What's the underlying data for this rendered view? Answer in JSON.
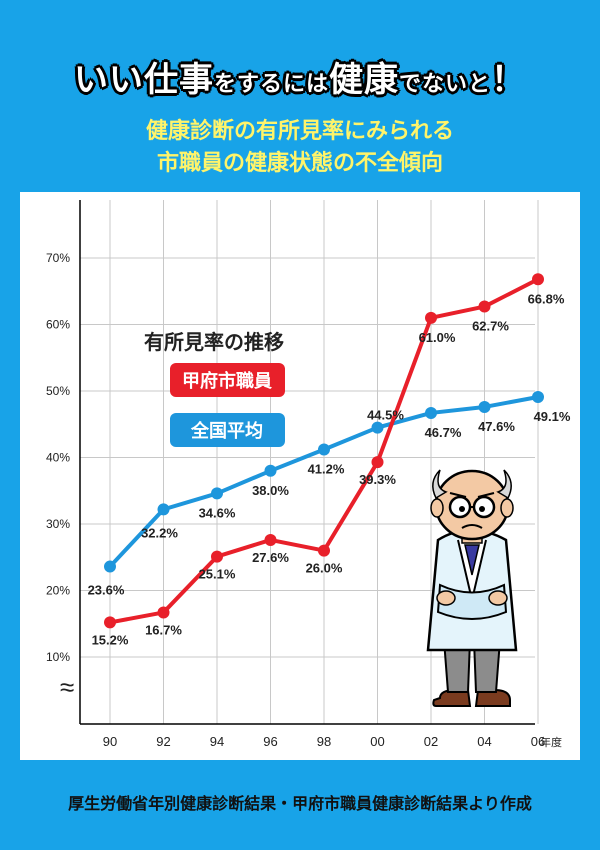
{
  "title": {
    "part1": "いい仕事",
    "part2": "をするには",
    "part3": "健康",
    "part4": "でないと",
    "part5": "！"
  },
  "subtitle": {
    "line1": "健康診断の有所見率にみられる",
    "line2": "市職員の健康状態の不全傾向"
  },
  "footer": "厚生労働省年別健康診断結果・甲府市職員健康診断結果より作成",
  "chart_data": {
    "type": "line",
    "title": "有所見率の推移",
    "categories": [
      "90",
      "92",
      "94",
      "96",
      "98",
      "00",
      "02",
      "04",
      "06"
    ],
    "x_unit": "年度",
    "y_ticks": [
      "10%",
      "20%",
      "30%",
      "40%",
      "50%",
      "60%",
      "70%"
    ],
    "ylim": [
      5,
      72
    ],
    "grid": true,
    "axis_break": "≈",
    "legend_position": "upper-left",
    "series": [
      {
        "name": "甲府市職員",
        "color": "#e8202a",
        "values": [
          15.2,
          16.7,
          25.1,
          27.6,
          26.0,
          39.3,
          61.0,
          62.7,
          66.8
        ],
        "labels": [
          "15.2%",
          "16.7%",
          "25.1%",
          "27.6%",
          "26.0%",
          "39.3%",
          "61.0%",
          "62.7%",
          "66.8%"
        ]
      },
      {
        "name": "全国平均",
        "color": "#1e96dc",
        "values": [
          23.6,
          32.2,
          34.6,
          38.0,
          41.2,
          44.5,
          46.7,
          47.6,
          49.1
        ],
        "labels": [
          "23.6%",
          "32.2%",
          "34.6%",
          "38.0%",
          "41.2%",
          "44.5%",
          "46.7%",
          "47.6%",
          "49.1%"
        ]
      }
    ]
  }
}
